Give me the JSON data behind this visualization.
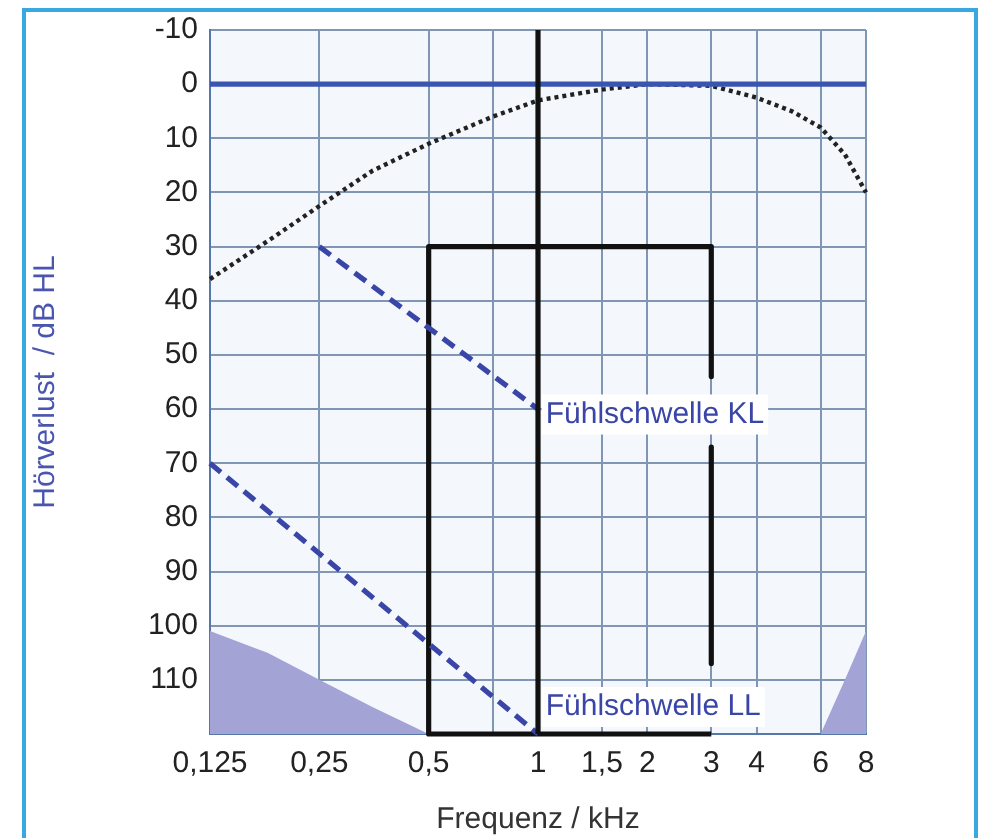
{
  "chart_data": {
    "type": "line",
    "xlabel": "Frequenz / kHz",
    "ylabel": "Hörverlust  / dB HL",
    "log": "x",
    "xlim": [
      0.125,
      8
    ],
    "xticks": [
      {
        "value": 0.125,
        "label": "0,125"
      },
      {
        "value": 0.25,
        "label": "0,25"
      },
      {
        "value": 0.5,
        "label": "0,5"
      },
      {
        "value": 0.75,
        "label": null
      },
      1,
      {
        "value": 1.5,
        "label": "1,5"
      },
      2,
      3,
      4,
      6,
      8
    ],
    "ylim": [
      120,
      -10
    ],
    "yticks": [
      -10,
      0,
      10,
      20,
      30,
      40,
      50,
      60,
      70,
      80,
      90,
      100,
      110,
      {
        "value": 120,
        "label": null
      }
    ],
    "grid": true,
    "legend": false,
    "marker": "none",
    "series": [
      {
        "type": "area",
        "color": "#a3a3d6",
        "x": [
          0.125,
          0.125,
          0.18,
          0.25,
          0.35,
          0.5
        ],
        "values": [
          120,
          101,
          105,
          110,
          115,
          120
        ]
      },
      {
        "type": "area",
        "color": "#a3a3d6",
        "x": [
          6,
          7,
          8,
          8
        ],
        "values": [
          120,
          110,
          101,
          120
        ]
      },
      {
        "type": "line",
        "color": "#222222",
        "line_style": "dotted",
        "x": [
          0.125,
          0.18,
          0.25,
          0.35,
          0.5,
          0.75,
          1,
          1.5,
          2,
          3,
          4,
          5,
          6,
          7,
          8
        ],
        "values": [
          36,
          29,
          22.5,
          16,
          11,
          6,
          3,
          1,
          0,
          0.3,
          2.5,
          5,
          8,
          13,
          20
        ]
      },
      {
        "type": "line",
        "color": "#3a45a8",
        "line_style": "dashed",
        "x": [
          0.25,
          1
        ],
        "values": [
          30,
          60
        ]
      },
      {
        "color": "#3a45a8",
        "line_style": "dashed",
        "x": [
          0.125,
          1
        ],
        "values": [
          70,
          120
        ]
      },
      {
        "color": "#111111",
        "line_style": "solid",
        "x": [
          3,
          3,
          null,
          3,
          0.5,
          0.5,
          3,
          3
        ],
        "values": [
          67,
          107,
          null,
          120,
          120,
          30,
          30,
          54
        ]
      }
    ],
    "ref_lines": [
      {
        "axis": "y",
        "value": 0,
        "color": "#3a55b0"
      },
      {
        "axis": "x",
        "value": 1,
        "color": "#111111"
      }
    ],
    "annotations": [
      {
        "text": "Fühlschwelle KL",
        "x": 1.05,
        "y": 61
      },
      {
        "text": "Fühlschwelle LL",
        "x": 1.05,
        "y": 115
      }
    ]
  }
}
